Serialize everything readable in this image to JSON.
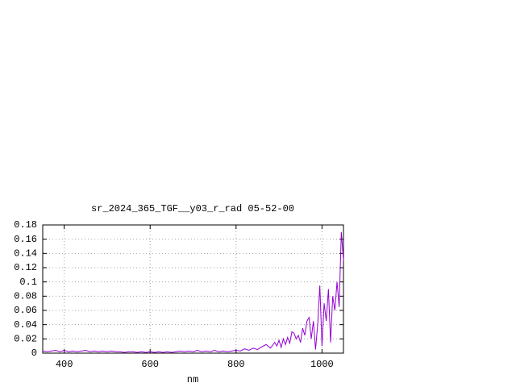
{
  "chart_data": {
    "type": "line",
    "title": "sr_2024_365_TGF__y03_r_rad 05-52-00",
    "x_label": "nm",
    "x": [
      350,
      360,
      370,
      380,
      390,
      400,
      410,
      420,
      430,
      440,
      450,
      460,
      470,
      480,
      490,
      500,
      510,
      520,
      530,
      540,
      550,
      560,
      570,
      580,
      590,
      600,
      610,
      620,
      630,
      640,
      650,
      660,
      670,
      680,
      690,
      700,
      710,
      720,
      730,
      740,
      750,
      760,
      770,
      780,
      790,
      800,
      810,
      820,
      830,
      840,
      850,
      860,
      870,
      880,
      890,
      895,
      900,
      905,
      910,
      915,
      920,
      925,
      930,
      935,
      940,
      945,
      950,
      955,
      960,
      965,
      970,
      975,
      980,
      985,
      990,
      995,
      1000,
      1005,
      1010,
      1015,
      1020,
      1025,
      1030,
      1035,
      1040,
      1045,
      1050
    ],
    "series": [
      {
        "color": "#9400d3",
        "values": [
          0.003,
          0.002,
          0.003,
          0.004,
          0.002,
          0.004,
          0.002,
          0.003,
          0.002,
          0.003,
          0.004,
          0.002,
          0.003,
          0.002,
          0.003,
          0.002,
          0.003,
          0.002,
          0.002,
          0.001,
          0.002,
          0.002,
          0.001,
          0.002,
          0.001,
          0.002,
          0.001,
          0.002,
          0.001,
          0.002,
          0.001,
          0.002,
          0.003,
          0.002,
          0.003,
          0.002,
          0.004,
          0.002,
          0.003,
          0.002,
          0.004,
          0.002,
          0.003,
          0.002,
          0.003,
          0.004,
          0.003,
          0.006,
          0.004,
          0.007,
          0.005,
          0.009,
          0.012,
          0.007,
          0.015,
          0.01,
          0.018,
          0.008,
          0.02,
          0.012,
          0.022,
          0.014,
          0.03,
          0.028,
          0.02,
          0.025,
          0.015,
          0.035,
          0.025,
          0.045,
          0.05,
          0.02,
          0.045,
          0.005,
          0.04,
          0.095,
          0.01,
          0.07,
          0.045,
          0.09,
          0.015,
          0.08,
          0.06,
          0.1,
          0.065,
          0.17,
          0.13
        ]
      }
    ],
    "xlim": [
      350,
      1050
    ],
    "xticks": [
      400,
      600,
      800,
      1000
    ],
    "ylim": [
      0,
      0.18
    ],
    "yticks": [
      0,
      0.02,
      0.04,
      0.06,
      0.08,
      0.1,
      0.12,
      0.14,
      0.16,
      0.18
    ],
    "grid": true
  }
}
